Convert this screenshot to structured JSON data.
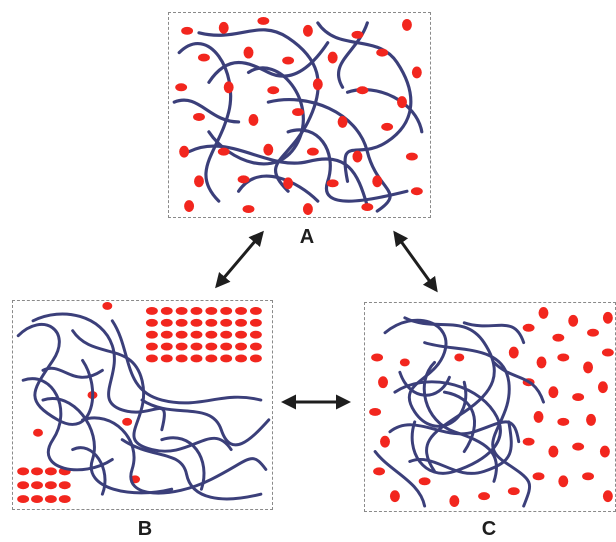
{
  "labels": {
    "a": "A",
    "b": "B",
    "c": "C"
  },
  "colors": {
    "chain": "#3b3f7a",
    "particle": "#f2261e",
    "border": "#8a8a8a",
    "arrow": "#1e1e1e"
  },
  "panels": [
    {
      "id": "A",
      "state": "chains and particles uniformly dispersed"
    },
    {
      "id": "B",
      "state": "particles aggregated into ordered clusters"
    },
    {
      "id": "C",
      "state": "chains collapsed into a central coil with particles around it"
    }
  ],
  "arrows": [
    {
      "from": "A",
      "to": "B",
      "style": "double-headed"
    },
    {
      "from": "A",
      "to": "C",
      "style": "double-headed"
    },
    {
      "from": "B",
      "to": "C",
      "style": "double-headed"
    }
  ]
}
